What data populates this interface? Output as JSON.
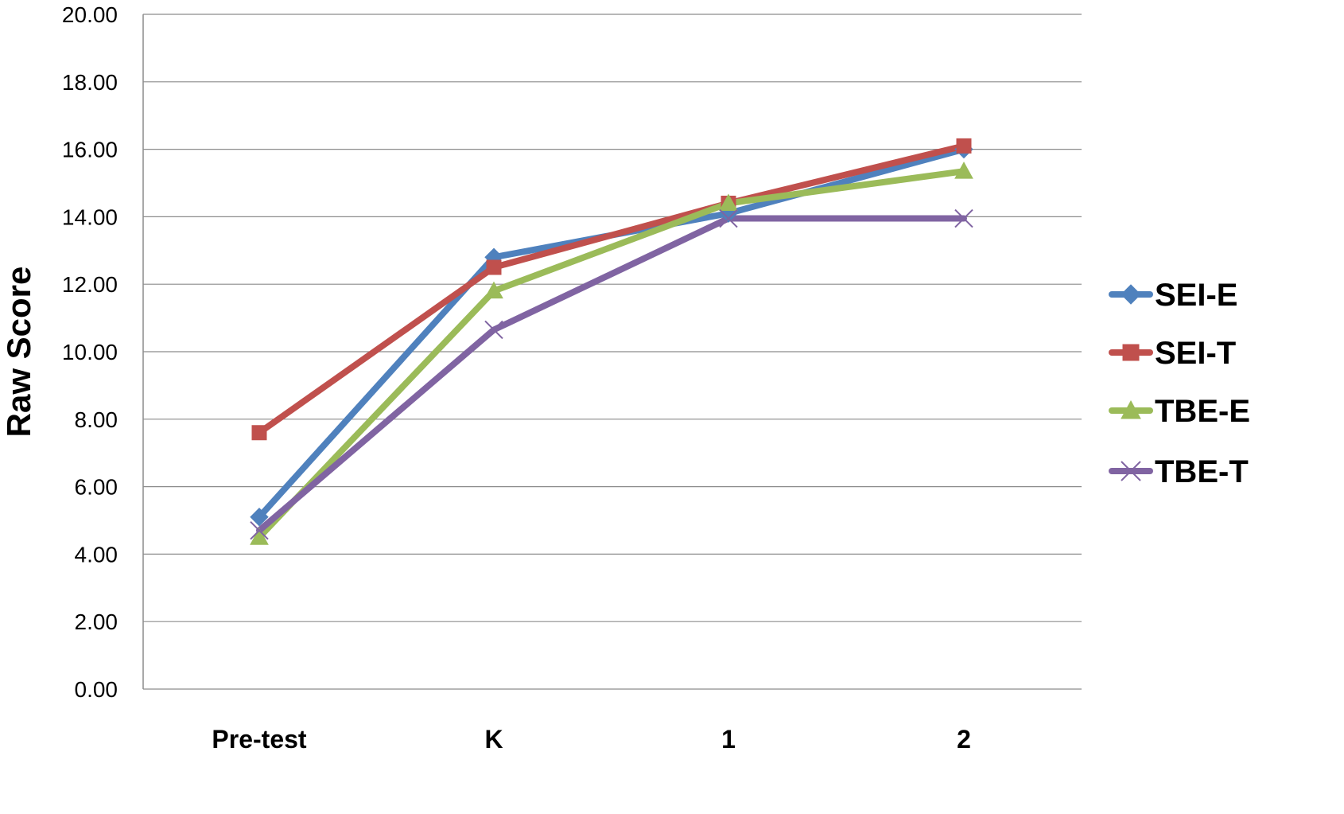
{
  "chart_data": {
    "type": "line",
    "categories": [
      "Pre-test",
      "K",
      "1",
      "2"
    ],
    "series": [
      {
        "name": "SEI-E",
        "values": [
          5.1,
          12.8,
          14.1,
          16.0
        ],
        "color": "#4F81BD",
        "marker": "diamond",
        "marker_icon": "diamond-marker-icon"
      },
      {
        "name": "SEI-T",
        "values": [
          7.6,
          12.5,
          14.4,
          16.1
        ],
        "color": "#C0504D",
        "marker": "square",
        "marker_icon": "square-marker-icon"
      },
      {
        "name": "TBE-E",
        "values": [
          4.5,
          11.8,
          14.4,
          15.35
        ],
        "color": "#9BBB59",
        "marker": "triangle",
        "marker_icon": "triangle-marker-icon"
      },
      {
        "name": "TBE-T",
        "values": [
          4.7,
          10.65,
          13.95,
          13.95
        ],
        "color": "#8064A2",
        "marker": "x",
        "marker_icon": "x-marker-icon"
      }
    ],
    "ylabel": "Raw Score",
    "xlabel": "",
    "ylim": [
      0,
      20
    ],
    "yticks": [
      "0.00",
      "2.00",
      "4.00",
      "6.00",
      "8.00",
      "10.00",
      "12.00",
      "14.00",
      "16.00",
      "18.00",
      "20.00"
    ],
    "grid": true,
    "legend_position": "right"
  }
}
